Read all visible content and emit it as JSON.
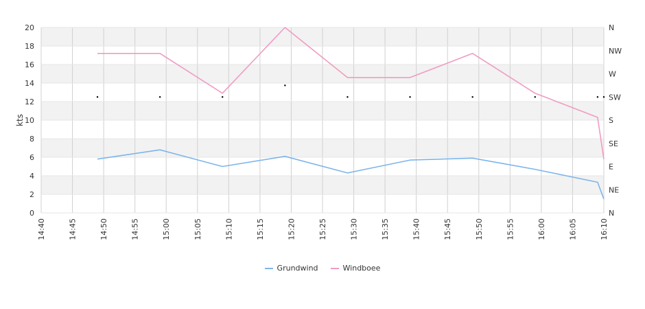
{
  "chart_data": {
    "type": "line",
    "ylabel": "kts",
    "ylim": [
      0,
      20
    ],
    "y_ticks": [
      "0",
      "2",
      "4",
      "6",
      "8",
      "10",
      "12",
      "14",
      "16",
      "18",
      "20"
    ],
    "x_ticks": [
      "14:40",
      "14:45",
      "14:50",
      "14:55",
      "15:00",
      "15:05",
      "15:10",
      "15:15",
      "15:20",
      "15:25",
      "15:30",
      "15:35",
      "15:40",
      "15:45",
      "15:50",
      "15:55",
      "16:00",
      "16:05",
      "16:10"
    ],
    "x_times": [
      "14:49",
      "14:59",
      "15:09",
      "15:19",
      "15:29",
      "15:39",
      "15:49",
      "15:59",
      "16:09",
      "16:10"
    ],
    "right_axis_ticks": [
      "N",
      "NE",
      "E",
      "SE",
      "S",
      "SW",
      "W",
      "NW",
      "N"
    ],
    "series": [
      {
        "name": "Grundwind",
        "color": "#7cb5ec",
        "values": [
          5.8,
          6.8,
          5.0,
          6.1,
          4.3,
          5.7,
          5.9,
          4.7,
          3.3,
          1.5
        ]
      },
      {
        "name": "Windboee",
        "color": "#f09bc2",
        "values": [
          17.2,
          17.2,
          12.9,
          20.0,
          14.6,
          14.6,
          17.2,
          12.9,
          10.3,
          5.8
        ]
      }
    ],
    "direction": {
      "times": [
        "14:49",
        "14:59",
        "15:09",
        "15:19",
        "15:29",
        "15:39",
        "15:49",
        "15:59",
        "16:09",
        "16:10"
      ],
      "values": [
        "SW",
        "SW",
        "SW",
        "WSW",
        "SW",
        "SW",
        "SW",
        "SW",
        "SW",
        "SW"
      ]
    },
    "grid": true,
    "legend_position": "bottom-center"
  },
  "legend": {
    "items": [
      {
        "label": "Grundwind",
        "color": "#7cb5ec"
      },
      {
        "label": "Windboee",
        "color": "#f09bc2"
      }
    ]
  }
}
